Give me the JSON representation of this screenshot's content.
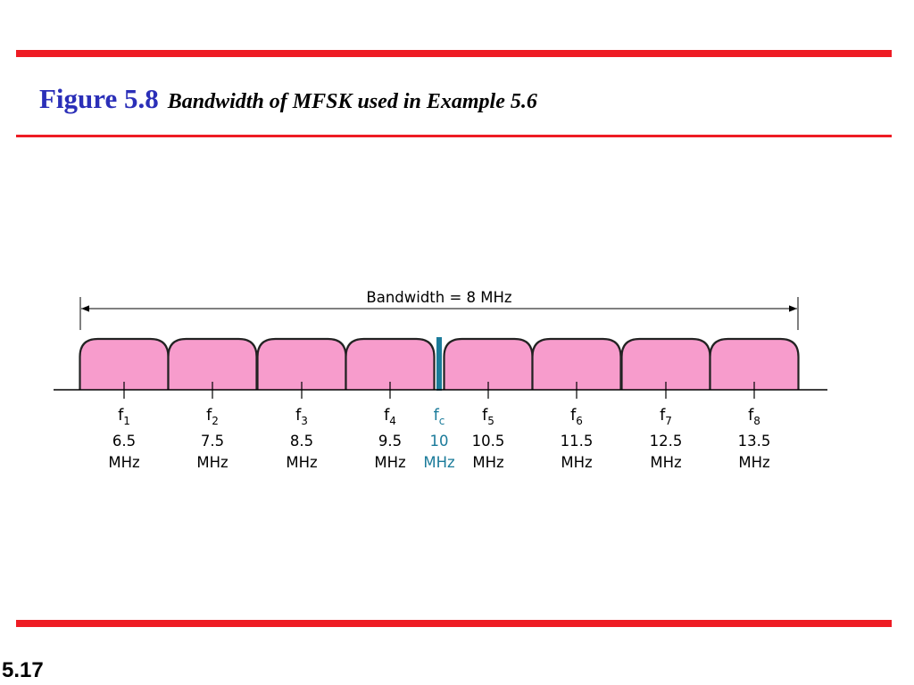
{
  "header": {
    "figure_label": "Figure 5.8",
    "caption": "Bandwidth of MFSK used in Example 5.6",
    "figure_color": "#2b2fb8"
  },
  "colors": {
    "rule": "#ee1c24",
    "band_fill": "#f79ccc",
    "band_stroke": "#222222",
    "carrier": "#1b7b9a",
    "text": "#000000"
  },
  "diagram": {
    "bandwidth_label": "Bandwidth = 8 MHz",
    "unit": "MHz",
    "carrier": {
      "base": "f",
      "sub": "c",
      "value": "10"
    },
    "bands": [
      {
        "base": "f",
        "sub": "1",
        "value": "6.5"
      },
      {
        "base": "f",
        "sub": "2",
        "value": "7.5"
      },
      {
        "base": "f",
        "sub": "3",
        "value": "8.5"
      },
      {
        "base": "f",
        "sub": "4",
        "value": "9.5"
      },
      {
        "base": "f",
        "sub": "5",
        "value": "10.5"
      },
      {
        "base": "f",
        "sub": "6",
        "value": "11.5"
      },
      {
        "base": "f",
        "sub": "7",
        "value": "12.5"
      },
      {
        "base": "f",
        "sub": "8",
        "value": "13.5"
      }
    ]
  },
  "footer": {
    "slide_number": "5.17"
  }
}
